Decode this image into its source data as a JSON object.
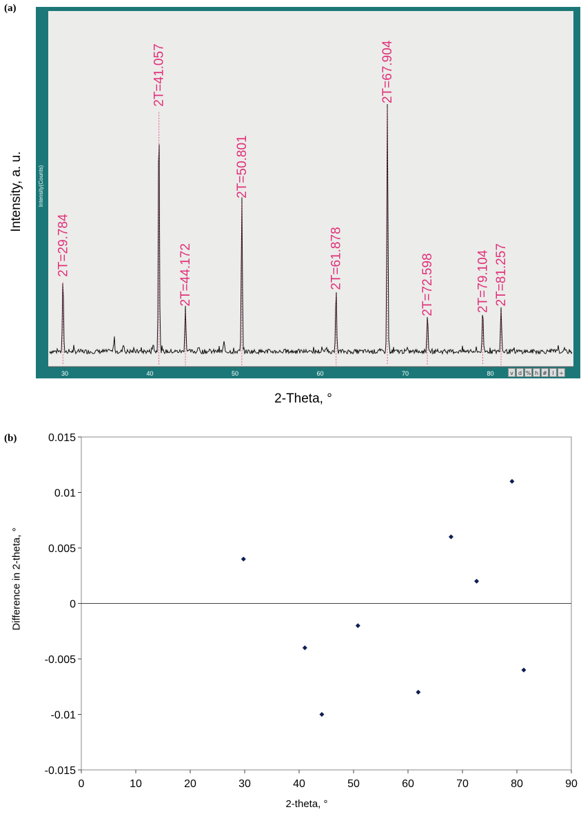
{
  "panel_a": {
    "letter": "(a)",
    "ylabel": "Intensity, a. u.",
    "inner_ylabel": "Intensity(Counts)",
    "xlabel": "2-Theta, °",
    "tools": [
      "v",
      "d",
      "%",
      "h",
      "#",
      "l",
      "÷"
    ]
  },
  "panel_b": {
    "letter": "(b)",
    "ylabel": "Difference in 2-theta, °",
    "xlabel": "2-theta, °"
  },
  "colors": {
    "frame": "#1c7878",
    "plot_bg": "#ececea",
    "peak_label": "#e0307a",
    "marker": "#0d1d52",
    "trace": "#111111"
  },
  "chart_data": [
    {
      "type": "line",
      "x_ticks": [
        30,
        40,
        50,
        60,
        70,
        80
      ],
      "xlim": [
        28,
        93
      ],
      "ylim": [
        0,
        100
      ],
      "peaks": [
        {
          "x": 29.784,
          "y": 23,
          "label": "2T=29.784"
        },
        {
          "x": 41.057,
          "y": 75,
          "label": "2T=41.057"
        },
        {
          "x": 44.172,
          "y": 14,
          "label": "2T=44.172"
        },
        {
          "x": 50.801,
          "y": 47,
          "label": "2T=50.801"
        },
        {
          "x": 61.878,
          "y": 19,
          "label": "2T=61.878"
        },
        {
          "x": 67.904,
          "y": 76,
          "label": "2T=67.904"
        },
        {
          "x": 72.598,
          "y": 11,
          "label": "2T=72.598"
        },
        {
          "x": 79.104,
          "y": 12,
          "label": "2T=79.104"
        },
        {
          "x": 81.257,
          "y": 14,
          "label": "2T=81.257"
        }
      ],
      "minor_peaks": [
        {
          "x": 35.8,
          "y": 4
        },
        {
          "x": 36.9,
          "y": 2.5
        },
        {
          "x": 40.4,
          "y": 3
        },
        {
          "x": 48.7,
          "y": 3
        },
        {
          "x": 45.7,
          "y": 1.5
        },
        {
          "x": 60.7,
          "y": 1.5
        }
      ]
    },
    {
      "type": "scatter",
      "xlim": [
        0,
        90
      ],
      "ylim": [
        -0.015,
        0.015
      ],
      "x_ticks": [
        0,
        10,
        20,
        30,
        40,
        50,
        60,
        70,
        80,
        90
      ],
      "y_ticks": [
        0.015,
        0.01,
        0.005,
        0,
        -0.005,
        -0.01,
        -0.015
      ],
      "y_tick_labels": [
        "0.015",
        "0.01",
        "0.005",
        "0",
        "-0.005",
        "-0.01",
        "-0.015"
      ],
      "points": [
        {
          "x": 29.784,
          "y": 0.004
        },
        {
          "x": 41.057,
          "y": -0.004
        },
        {
          "x": 44.172,
          "y": -0.01
        },
        {
          "x": 50.801,
          "y": -0.002
        },
        {
          "x": 61.878,
          "y": -0.008
        },
        {
          "x": 67.904,
          "y": 0.006
        },
        {
          "x": 72.598,
          "y": 0.002
        },
        {
          "x": 79.104,
          "y": 0.011
        },
        {
          "x": 81.257,
          "y": -0.006
        }
      ]
    }
  ]
}
